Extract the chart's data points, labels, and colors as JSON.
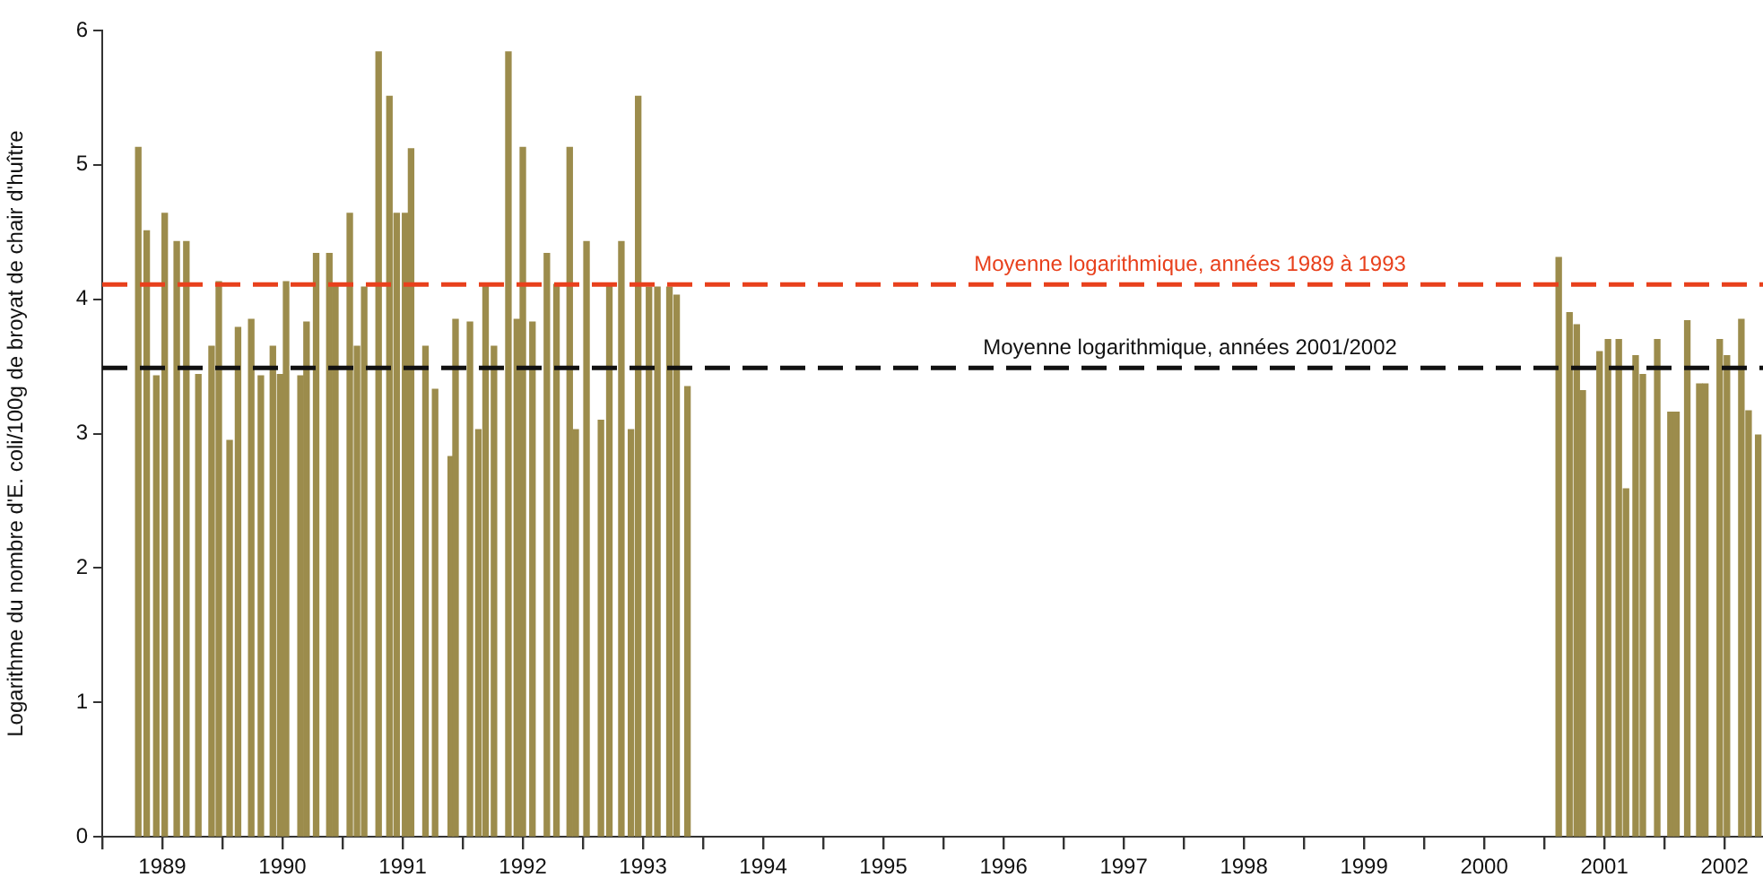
{
  "chart_data": {
    "type": "bar",
    "ylabel": "Logarithme du nombre d'E. coli/100g de broyat de chair d'huître",
    "x": [
      1989.3,
      1989.37,
      1989.45,
      1989.52,
      1989.62,
      1989.7,
      1989.8,
      1989.91,
      1989.97,
      1990.06,
      1990.13,
      1990.24,
      1990.32,
      1990.42,
      1990.48,
      1990.53,
      1990.65,
      1990.7,
      1990.78,
      1990.89,
      1990.94,
      1991.06,
      1991.12,
      1991.18,
      1991.3,
      1991.39,
      1991.45,
      1991.52,
      1991.57,
      1991.69,
      1991.77,
      1991.9,
      1991.94,
      1992.06,
      1992.13,
      1992.19,
      1992.26,
      1992.38,
      1992.45,
      1992.5,
      1992.58,
      1992.7,
      1992.78,
      1992.89,
      1992.94,
      1993.03,
      1993.15,
      1993.22,
      1993.32,
      1993.4,
      1993.46,
      1993.55,
      1993.62,
      1993.72,
      1993.78,
      1993.87,
      2001.12,
      2001.21,
      2001.27,
      2001.32,
      2001.46,
      2001.53,
      2001.62,
      2001.68,
      2001.76,
      2001.82,
      2001.94,
      2002.05,
      2002.1,
      2002.19,
      2002.29,
      2002.34,
      2002.46,
      2002.52,
      2002.64,
      2002.7,
      2002.78
    ],
    "values": [
      5.13,
      4.51,
      3.43,
      4.64,
      4.43,
      4.43,
      3.44,
      3.65,
      4.13,
      2.95,
      3.79,
      3.85,
      3.43,
      3.65,
      3.44,
      4.13,
      3.43,
      3.83,
      4.34,
      4.34,
      4.11,
      4.64,
      3.65,
      4.09,
      5.84,
      5.51,
      4.64,
      4.64,
      5.12,
      3.65,
      3.33,
      2.83,
      3.85,
      3.83,
      3.03,
      4.11,
      3.65,
      5.84,
      3.85,
      5.13,
      3.83,
      4.34,
      4.11,
      5.13,
      3.03,
      4.43,
      3.1,
      4.11,
      4.43,
      3.03,
      5.51,
      4.09,
      4.09,
      4.09,
      4.03,
      3.35,
      4.31,
      3.9,
      3.81,
      3.32,
      3.61,
      3.7,
      3.7,
      2.59,
      3.58,
      3.44,
      3.7,
      3.16,
      3.16,
      3.84,
      3.37,
      3.37,
      3.7,
      3.58,
      3.85,
      3.17,
      2.99
    ],
    "color": "#9c8c4c",
    "xlim": [
      1989,
      2002.82
    ],
    "xticks": [
      {
        "value": 1989,
        "label": null
      },
      {
        "value": 1989.5,
        "label": "1989"
      },
      {
        "value": 1990,
        "label": null
      },
      {
        "value": 1990.5,
        "label": "1990"
      },
      {
        "value": 1991,
        "label": null
      },
      {
        "value": 1991.5,
        "label": "1991"
      },
      {
        "value": 1992,
        "label": null
      },
      {
        "value": 1992.5,
        "label": "1992"
      },
      {
        "value": 1993,
        "label": null
      },
      {
        "value": 1993.5,
        "label": "1993"
      },
      {
        "value": 1994,
        "label": null
      },
      {
        "value": 1994.5,
        "label": "1994"
      },
      {
        "value": 1995,
        "label": null
      },
      {
        "value": 1995.5,
        "label": "1995"
      },
      {
        "value": 1996,
        "label": null
      },
      {
        "value": 1996.5,
        "label": "1996"
      },
      {
        "value": 1997,
        "label": null
      },
      {
        "value": 1997.5,
        "label": "1997"
      },
      {
        "value": 1998,
        "label": null
      },
      {
        "value": 1998.5,
        "label": "1998"
      },
      {
        "value": 1999,
        "label": null
      },
      {
        "value": 1999.5,
        "label": "1999"
      },
      {
        "value": 2000,
        "label": null
      },
      {
        "value": 2000.5,
        "label": "2000"
      },
      {
        "value": 2001,
        "label": null
      },
      {
        "value": 2001.5,
        "label": "2001"
      },
      {
        "value": 2002,
        "label": null
      },
      {
        "value": 2002.5,
        "label": "2002"
      }
    ],
    "ylim": [
      0,
      6
    ],
    "yticks": [
      0,
      1,
      2,
      3,
      4,
      5,
      6
    ],
    "ref_lines": [
      {
        "axis": "y",
        "value": 4.11,
        "label": "Moyenne logarithmique, années 1989 à 1993",
        "color": "#e8401c",
        "line_style": "dashed"
      },
      {
        "axis": "y",
        "value": 3.49,
        "label": "Moyenne logarithmique, années 2001/2002",
        "color": "#111111",
        "line_style": "dashed"
      }
    ]
  }
}
